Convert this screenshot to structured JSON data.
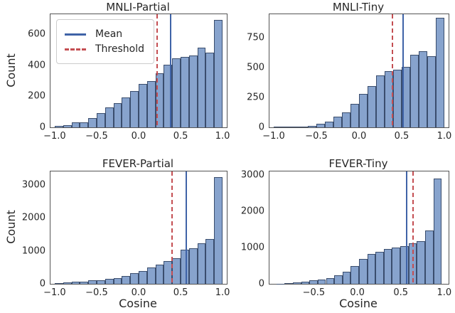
{
  "figure": {
    "background": "#ffffff"
  },
  "colors": {
    "bar_fill": "#87a3cd",
    "bar_edge": "#3a4d6d",
    "mean_line": "#3f63a7",
    "threshold_line": "#c44e52",
    "text": "#262626",
    "spine": "#555555",
    "legend_border": "#cccccc"
  },
  "chart_data": [
    {
      "type": "bar",
      "subtype": "histogram",
      "title": "MNLI-Partial",
      "xlabel": "",
      "ylabel": "Count",
      "legend_labels": {
        "mean": "Mean",
        "threshold": "Threshold"
      },
      "legend_position": "upper left",
      "grid": false,
      "bins": {
        "start": -1.0,
        "width": 0.1,
        "count": 20
      },
      "counts": [
        8,
        16,
        30,
        34,
        62,
        94,
        128,
        158,
        195,
        236,
        280,
        300,
        350,
        405,
        445,
        455,
        465,
        515,
        480,
        695
      ],
      "mean": 0.38,
      "threshold": 0.22,
      "xlim": [
        -1.05,
        1.05
      ],
      "ylim": [
        0,
        730
      ],
      "xticks": [
        -1.0,
        -0.5,
        0.0,
        0.5,
        1.0
      ],
      "yticks": [
        0,
        200,
        400,
        600
      ]
    },
    {
      "type": "bar",
      "subtype": "histogram",
      "title": "MNLI-Tiny",
      "xlabel": "",
      "ylabel": "",
      "grid": false,
      "bins": {
        "start": -1.0,
        "width": 0.1,
        "count": 20
      },
      "counts": [
        4,
        8,
        6,
        6,
        10,
        28,
        48,
        88,
        125,
        200,
        280,
        345,
        435,
        470,
        485,
        505,
        610,
        640,
        600,
        920
      ],
      "mean": 0.52,
      "threshold": 0.39,
      "xlim": [
        -1.05,
        1.05
      ],
      "ylim": [
        0,
        950
      ],
      "xticks": [
        -1.0,
        -0.5,
        0.0,
        0.5,
        1.0
      ],
      "yticks": [
        0,
        250,
        500,
        750
      ]
    },
    {
      "type": "bar",
      "subtype": "histogram",
      "title": "FEVER-Partial",
      "xlabel": "Cosine",
      "ylabel": "Count",
      "grid": false,
      "bins": {
        "start": -1.0,
        "width": 0.1,
        "count": 20
      },
      "counts": [
        20,
        35,
        60,
        63,
        98,
        118,
        140,
        175,
        245,
        315,
        385,
        495,
        580,
        680,
        780,
        1030,
        1080,
        1230,
        1350,
        3230
      ],
      "mean": 0.57,
      "threshold": 0.4,
      "xlim": [
        -1.05,
        1.05
      ],
      "ylim": [
        0,
        3400
      ],
      "xticks": [
        -1.0,
        -0.5,
        0.0,
        0.5,
        1.0
      ],
      "yticks": [
        0,
        1000,
        2000,
        3000
      ]
    },
    {
      "type": "bar",
      "subtype": "histogram",
      "title": "FEVER-Tiny",
      "xlabel": "Cosine",
      "ylabel": "",
      "grid": false,
      "bins": {
        "start": -0.93,
        "width": 0.095,
        "count": 20
      },
      "counts": [
        8,
        18,
        35,
        65,
        90,
        115,
        150,
        230,
        330,
        500,
        680,
        820,
        880,
        960,
        1000,
        1040,
        1110,
        1170,
        1470,
        2900
      ],
      "mean": 0.57,
      "threshold": 0.64,
      "xlim": [
        -1.01,
        1.05
      ],
      "ylim": [
        0,
        3100
      ],
      "xticks": [
        -0.5,
        0.0,
        0.5,
        1.0
      ],
      "yticks": [
        0,
        1000,
        2000,
        3000
      ]
    }
  ]
}
